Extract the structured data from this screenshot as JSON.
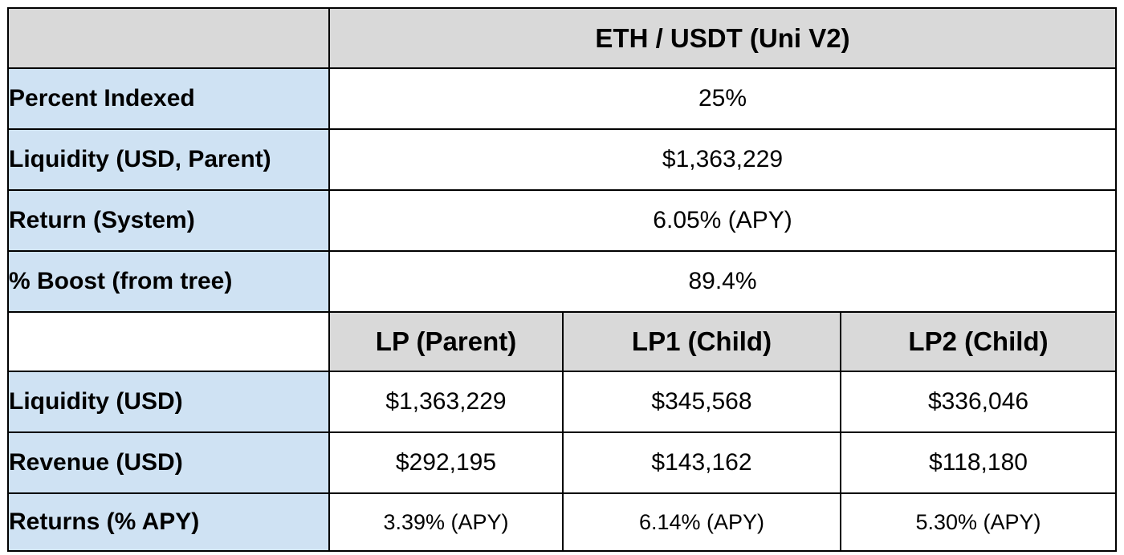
{
  "table": {
    "pair_title": "ETH / USDT (Uni V2)",
    "summary_rows": [
      {
        "label": "Percent Indexed",
        "value": "25%"
      },
      {
        "label": "Liquidity (USD, Parent)",
        "value": "$1,363,229"
      },
      {
        "label": "Return (System)",
        "value": "6.05% (APY)"
      },
      {
        "label": "% Boost (from tree)",
        "value": "89.4%"
      }
    ],
    "lp_columns": [
      "LP (Parent)",
      "LP1 (Child)",
      "LP2 (Child)"
    ],
    "lp_rows": [
      {
        "label": "Liquidity (USD)",
        "values": [
          "$1,363,229",
          "$345,568",
          "$336,046"
        ]
      },
      {
        "label": "Revenue (USD)",
        "values": [
          "$292,195",
          "$143,162",
          "$118,180"
        ]
      },
      {
        "label": "Returns (% APY)",
        "values": [
          "3.39% (APY)",
          "6.14% (APY)",
          "5.30% (APY)"
        ]
      }
    ]
  },
  "colors": {
    "label_fill": "#cfe2f3",
    "header_fill": "#d9d9d9",
    "border": "#000000"
  }
}
